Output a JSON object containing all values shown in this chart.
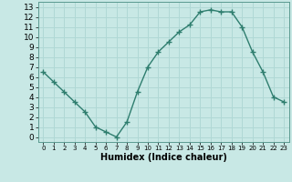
{
  "x": [
    0,
    1,
    2,
    3,
    4,
    5,
    6,
    7,
    8,
    9,
    10,
    11,
    12,
    13,
    14,
    15,
    16,
    17,
    18,
    19,
    20,
    21,
    22,
    23
  ],
  "y": [
    6.5,
    5.5,
    4.5,
    3.5,
    2.5,
    1.0,
    0.5,
    0.0,
    1.5,
    4.5,
    7.0,
    8.5,
    9.5,
    10.5,
    11.2,
    12.5,
    12.7,
    12.5,
    12.5,
    11.0,
    8.5,
    6.5,
    4.0,
    3.5
  ],
  "line_color": "#2e7d6e",
  "marker": "+",
  "marker_size": 4.0,
  "background_color": "#c8e8e5",
  "grid_color": "#b0d8d5",
  "xlabel": "Humidex (Indice chaleur)",
  "xlabel_fontsize": 7,
  "xlim": [
    -0.5,
    23.5
  ],
  "ylim": [
    -0.5,
    13.5
  ],
  "xticks": [
    0,
    1,
    2,
    3,
    4,
    5,
    6,
    7,
    8,
    9,
    10,
    11,
    12,
    13,
    14,
    15,
    16,
    17,
    18,
    19,
    20,
    21,
    22,
    23
  ],
  "yticks": [
    0,
    1,
    2,
    3,
    4,
    5,
    6,
    7,
    8,
    9,
    10,
    11,
    12,
    13
  ],
  "ytick_fontsize": 6.5,
  "xtick_fontsize": 5.0,
  "line_width": 1.0
}
